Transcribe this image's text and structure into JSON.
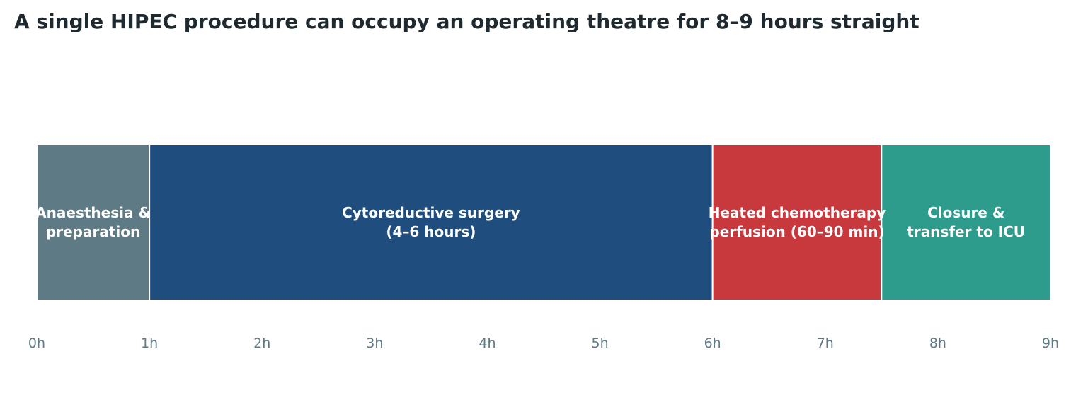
{
  "title": "A single HIPEC procedure can occupy an operating theatre for 8–9 hours straight",
  "chart_data": {
    "type": "bar",
    "orientation": "horizontal-timeline",
    "unit": "hours",
    "xlim": [
      0,
      9
    ],
    "ticks": [
      0,
      1,
      2,
      3,
      4,
      5,
      6,
      7,
      8,
      9
    ],
    "tick_labels": [
      "0h",
      "1h",
      "2h",
      "3h",
      "4h",
      "5h",
      "6h",
      "7h",
      "8h",
      "9h"
    ],
    "grid": false,
    "segments": [
      {
        "label_lines": [
          "Anaesthesia &",
          "preparation"
        ],
        "start": 0,
        "end": 1,
        "color": "#5d7a85"
      },
      {
        "label_lines": [
          "Cytoreductive surgery",
          "(4–6 hours)"
        ],
        "start": 1,
        "end": 6,
        "color": "#1f4e7e"
      },
      {
        "label_lines": [
          "Heated chemotherapy",
          "perfusion (60–90 min)"
        ],
        "start": 6,
        "end": 7.5,
        "color": "#c8393d"
      },
      {
        "label_lines": [
          "Closure &",
          "transfer to ICU"
        ],
        "start": 7.5,
        "end": 9,
        "color": "#2d9c8c"
      }
    ],
    "label_color": "#ffffff",
    "tick_color": "#5d7a85"
  }
}
